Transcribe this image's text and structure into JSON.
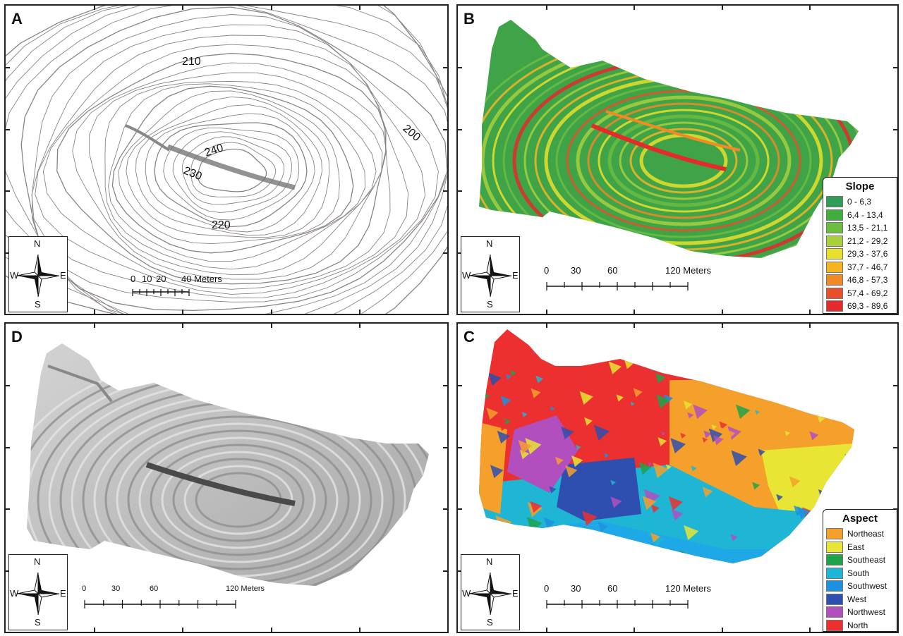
{
  "panels": {
    "A": {
      "letter": "A",
      "contour_labels": [
        "210",
        "200",
        "240",
        "230",
        "220"
      ],
      "scale_numbers": [
        "0",
        "10",
        "20",
        "40 Meters"
      ]
    },
    "B": {
      "letter": "B",
      "legend_title": "Slope",
      "legend": [
        {
          "label": "0 - 6,3",
          "color": "#2e9e57"
        },
        {
          "label": "6,4 - 13,4",
          "color": "#41ad3e"
        },
        {
          "label": "13,5 - 21,1",
          "color": "#6cbd3f"
        },
        {
          "label": "21,2 - 29,2",
          "color": "#a8cf3c"
        },
        {
          "label": "29,3 - 37,6",
          "color": "#e8e02a"
        },
        {
          "label": "37,7 - 46,7",
          "color": "#f5b523"
        },
        {
          "label": "46,8 - 57,3",
          "color": "#ef8a26"
        },
        {
          "label": "57,4 - 69,2",
          "color": "#e8502c"
        },
        {
          "label": "69,3 - 89,6",
          "color": "#e42a2a"
        }
      ],
      "scale_numbers": [
        "0",
        "30",
        "60",
        "120 Meters"
      ]
    },
    "D": {
      "letter": "D",
      "scale_numbers": [
        "0",
        "30",
        "60",
        "120 Meters"
      ]
    },
    "C": {
      "letter": "C",
      "legend_title": "Aspect",
      "legend": [
        {
          "label": "Northeast",
          "color": "#f4a02a"
        },
        {
          "label": "East",
          "color": "#e8e534"
        },
        {
          "label": "Southeast",
          "color": "#1fa34a"
        },
        {
          "label": "South",
          "color": "#1fb6d5"
        },
        {
          "label": "Southwest",
          "color": "#1e90e0"
        },
        {
          "label": "West",
          "color": "#2e4fb0"
        },
        {
          "label": "Northwest",
          "color": "#b24fbf"
        },
        {
          "label": "North",
          "color": "#ec2f2f"
        }
      ],
      "scale_numbers": [
        "0",
        "30",
        "60",
        "120 Meters"
      ]
    }
  },
  "compass": {
    "n": "N",
    "s": "S",
    "e": "E",
    "w": "W"
  }
}
